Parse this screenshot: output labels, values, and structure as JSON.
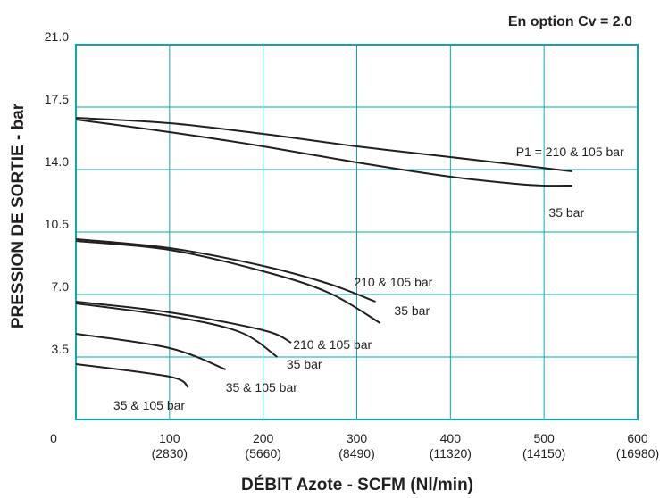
{
  "chart_data": {
    "type": "line",
    "title": "En option Cv = 2.0",
    "xlabel": "DÉBIT  Azote - SCFM (Nl/min)",
    "ylabel": "PRESSION DE SORTIE - bar",
    "xlim": [
      0,
      600
    ],
    "ylim": [
      0,
      21
    ],
    "grid": true,
    "frame_color": "#0aaba6",
    "line_color": "#231f20",
    "origin_label": "0",
    "x_ticks": [
      {
        "value": 100,
        "label": "100",
        "sublabel": "(2830)"
      },
      {
        "value": 200,
        "label": "200",
        "sublabel": "(5660)"
      },
      {
        "value": 300,
        "label": "300",
        "sublabel": "(8490)"
      },
      {
        "value": 400,
        "label": "400",
        "sublabel": "(11320)"
      },
      {
        "value": 500,
        "label": "500",
        "sublabel": "(14150)"
      },
      {
        "value": 600,
        "label": "600",
        "sublabel": "(16980)"
      }
    ],
    "y_ticks": [
      {
        "value": 3.5,
        "label": "3.5"
      },
      {
        "value": 7.0,
        "label": "7.0"
      },
      {
        "value": 10.5,
        "label": "10.5"
      },
      {
        "value": 14.0,
        "label": "14.0"
      },
      {
        "value": 17.5,
        "label": "17.5"
      },
      {
        "value": 21.0,
        "label": "21.0"
      }
    ],
    "series": [
      {
        "x": [
          0,
          100,
          200,
          300,
          400,
          530
        ],
        "y": [
          16.9,
          16.6,
          16.0,
          15.3,
          14.7,
          13.9
        ]
      },
      {
        "x": [
          0,
          100,
          200,
          300,
          400,
          470,
          500,
          530
        ],
        "y": [
          16.8,
          16.1,
          15.3,
          14.4,
          13.6,
          13.2,
          13.1,
          13.1
        ]
      },
      {
        "x": [
          0,
          100,
          200,
          270,
          320
        ],
        "y": [
          10.1,
          9.6,
          8.6,
          7.6,
          6.6
        ]
      },
      {
        "x": [
          0,
          100,
          200,
          270,
          325
        ],
        "y": [
          10.0,
          9.5,
          8.3,
          7.1,
          5.4
        ]
      },
      {
        "x": [
          0,
          100,
          200,
          230
        ],
        "y": [
          6.6,
          6.0,
          5.0,
          4.3
        ]
      },
      {
        "x": [
          0,
          100,
          175,
          215
        ],
        "y": [
          6.5,
          5.8,
          4.9,
          3.5
        ]
      },
      {
        "x": [
          0,
          100,
          160
        ],
        "y": [
          4.8,
          4.0,
          2.8
        ]
      },
      {
        "x": [
          0,
          100,
          120
        ],
        "y": [
          3.1,
          2.4,
          1.8
        ]
      }
    ],
    "annotations": [
      {
        "text": "P1 = 210 & 105 bar",
        "x": 470,
        "y": 15.0
      },
      {
        "text": "35 bar",
        "x": 505,
        "y": 11.6
      },
      {
        "text": "210 & 105 bar",
        "x": 297,
        "y": 7.7
      },
      {
        "text": "35 bar",
        "x": 340,
        "y": 6.1
      },
      {
        "text": "210 & 105 bar",
        "x": 232,
        "y": 4.2
      },
      {
        "text": "35 bar",
        "x": 225,
        "y": 3.1
      },
      {
        "text": "35 & 105 bar",
        "x": 160,
        "y": 1.8
      },
      {
        "text": "35 & 105 bar",
        "x": 40,
        "y": 0.8
      }
    ]
  }
}
